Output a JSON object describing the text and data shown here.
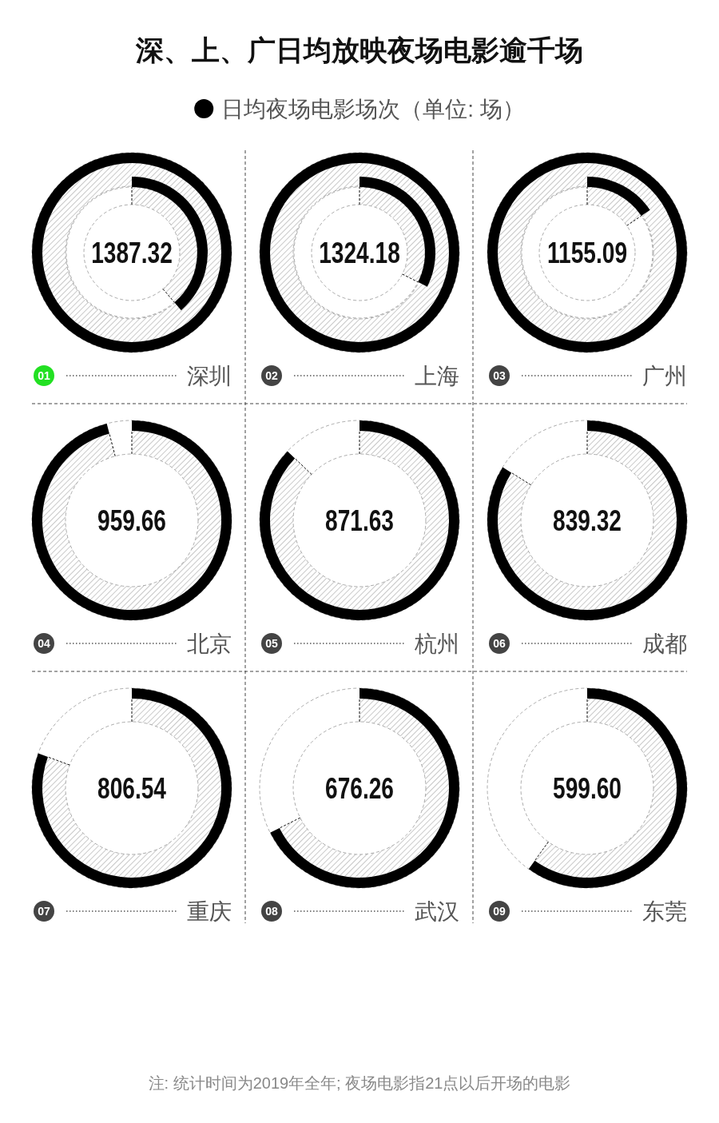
{
  "chart_data": {
    "type": "other",
    "title": "深、上、广日均放映夜场电影逾千场",
    "categories": [
      "深圳",
      "上海",
      "广州",
      "北京",
      "杭州",
      "成都",
      "重庆",
      "武汉",
      "东莞"
    ],
    "series": [
      {
        "name": "日均夜场电影场次（单位: 场）",
        "color": "#000000",
        "values": [
          1387.32,
          1324.18,
          1155.09,
          959.66,
          871.63,
          839.32,
          806.54,
          676.26,
          599.6
        ],
        "value_labels": [
          "1387.32",
          "1324.18",
          "1155.09",
          "959.66",
          "871.63",
          "839.32",
          "806.54",
          "676.26",
          "599.60"
        ]
      }
    ],
    "legend": "top",
    "annotations": [
      "01",
      "02",
      "03",
      "04",
      "05",
      "06",
      "07",
      "08",
      "09",
      "注: 统计时间为2019年全年; 夜场电影指21点以后开场的电影"
    ]
  }
}
